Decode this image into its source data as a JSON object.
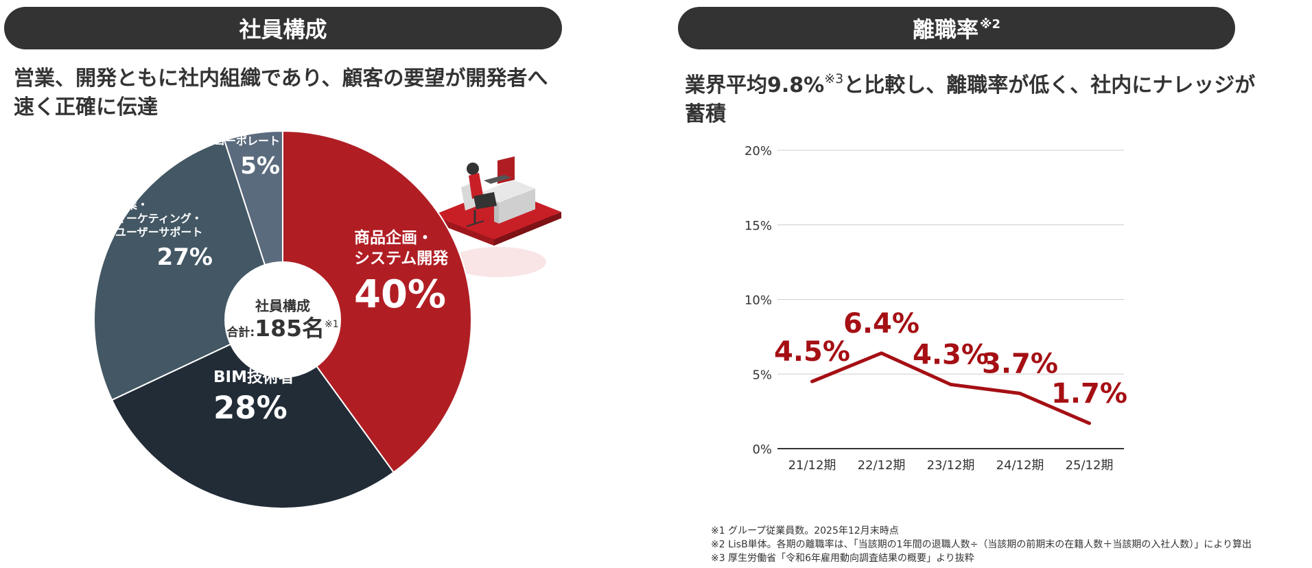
{
  "left": {
    "header": "社員構成",
    "lead_line1": "営業、開発ともに社内組織であり、顧客の要望が開発者へ",
    "lead_line2": "速く正確に伝達",
    "center_title": "社員構成",
    "center_total_label": "合計:",
    "center_total_value": "185名",
    "center_total_note": "※1"
  },
  "right": {
    "header": "離職率",
    "header_note": "※2",
    "lead_part1": "業界平均9.8%",
    "lead_note": "※3",
    "lead_part2": "と比較し、離職率が低く、社内にナレッジが",
    "lead_line2": "蓄積"
  },
  "chart_data": [
    {
      "type": "pie",
      "title": "社員構成",
      "slices": [
        {
          "label_lines": [
            "商品企画・",
            "システム開発"
          ],
          "value": 40,
          "value_label": "40%",
          "color": "#b01e24"
        },
        {
          "label_lines": [
            "BIM技術者"
          ],
          "value": 28,
          "value_label": "28%",
          "color": "#222c37"
        },
        {
          "label_lines": [
            "営業・",
            "マーケティング・",
            "ユーザーサポート"
          ],
          "value": 27,
          "value_label": "27%",
          "color": "#435764"
        },
        {
          "label_lines": [
            "コーポレート"
          ],
          "value": 5,
          "value_label": "5%",
          "color": "#5b6b7e"
        }
      ]
    },
    {
      "type": "line",
      "title": "離職率",
      "categories": [
        "21/12期",
        "22/12期",
        "23/12期",
        "24/12期",
        "25/12期"
      ],
      "values": [
        4.5,
        6.4,
        4.3,
        3.7,
        1.7
      ],
      "value_labels": [
        "4.5%",
        "6.4%",
        "4.3%",
        "3.7%",
        "1.7%"
      ],
      "y_ticks": [
        "0%",
        "5%",
        "10%",
        "15%",
        "20%"
      ],
      "ylim": [
        0,
        20
      ],
      "grid": true,
      "line_color": "#a50f14"
    }
  ],
  "notes": [
    "※1 グループ従業員数。2025年12月末時点",
    "※2 LisB単体。各期の離職率は、「当該期の1年間の退職人数÷（当該期の前期末の在籍人数＋当該期の入社人数）」により算出",
    "※3  厚生労働省「令和6年雇用動向調査結果の概要」より抜粋"
  ]
}
